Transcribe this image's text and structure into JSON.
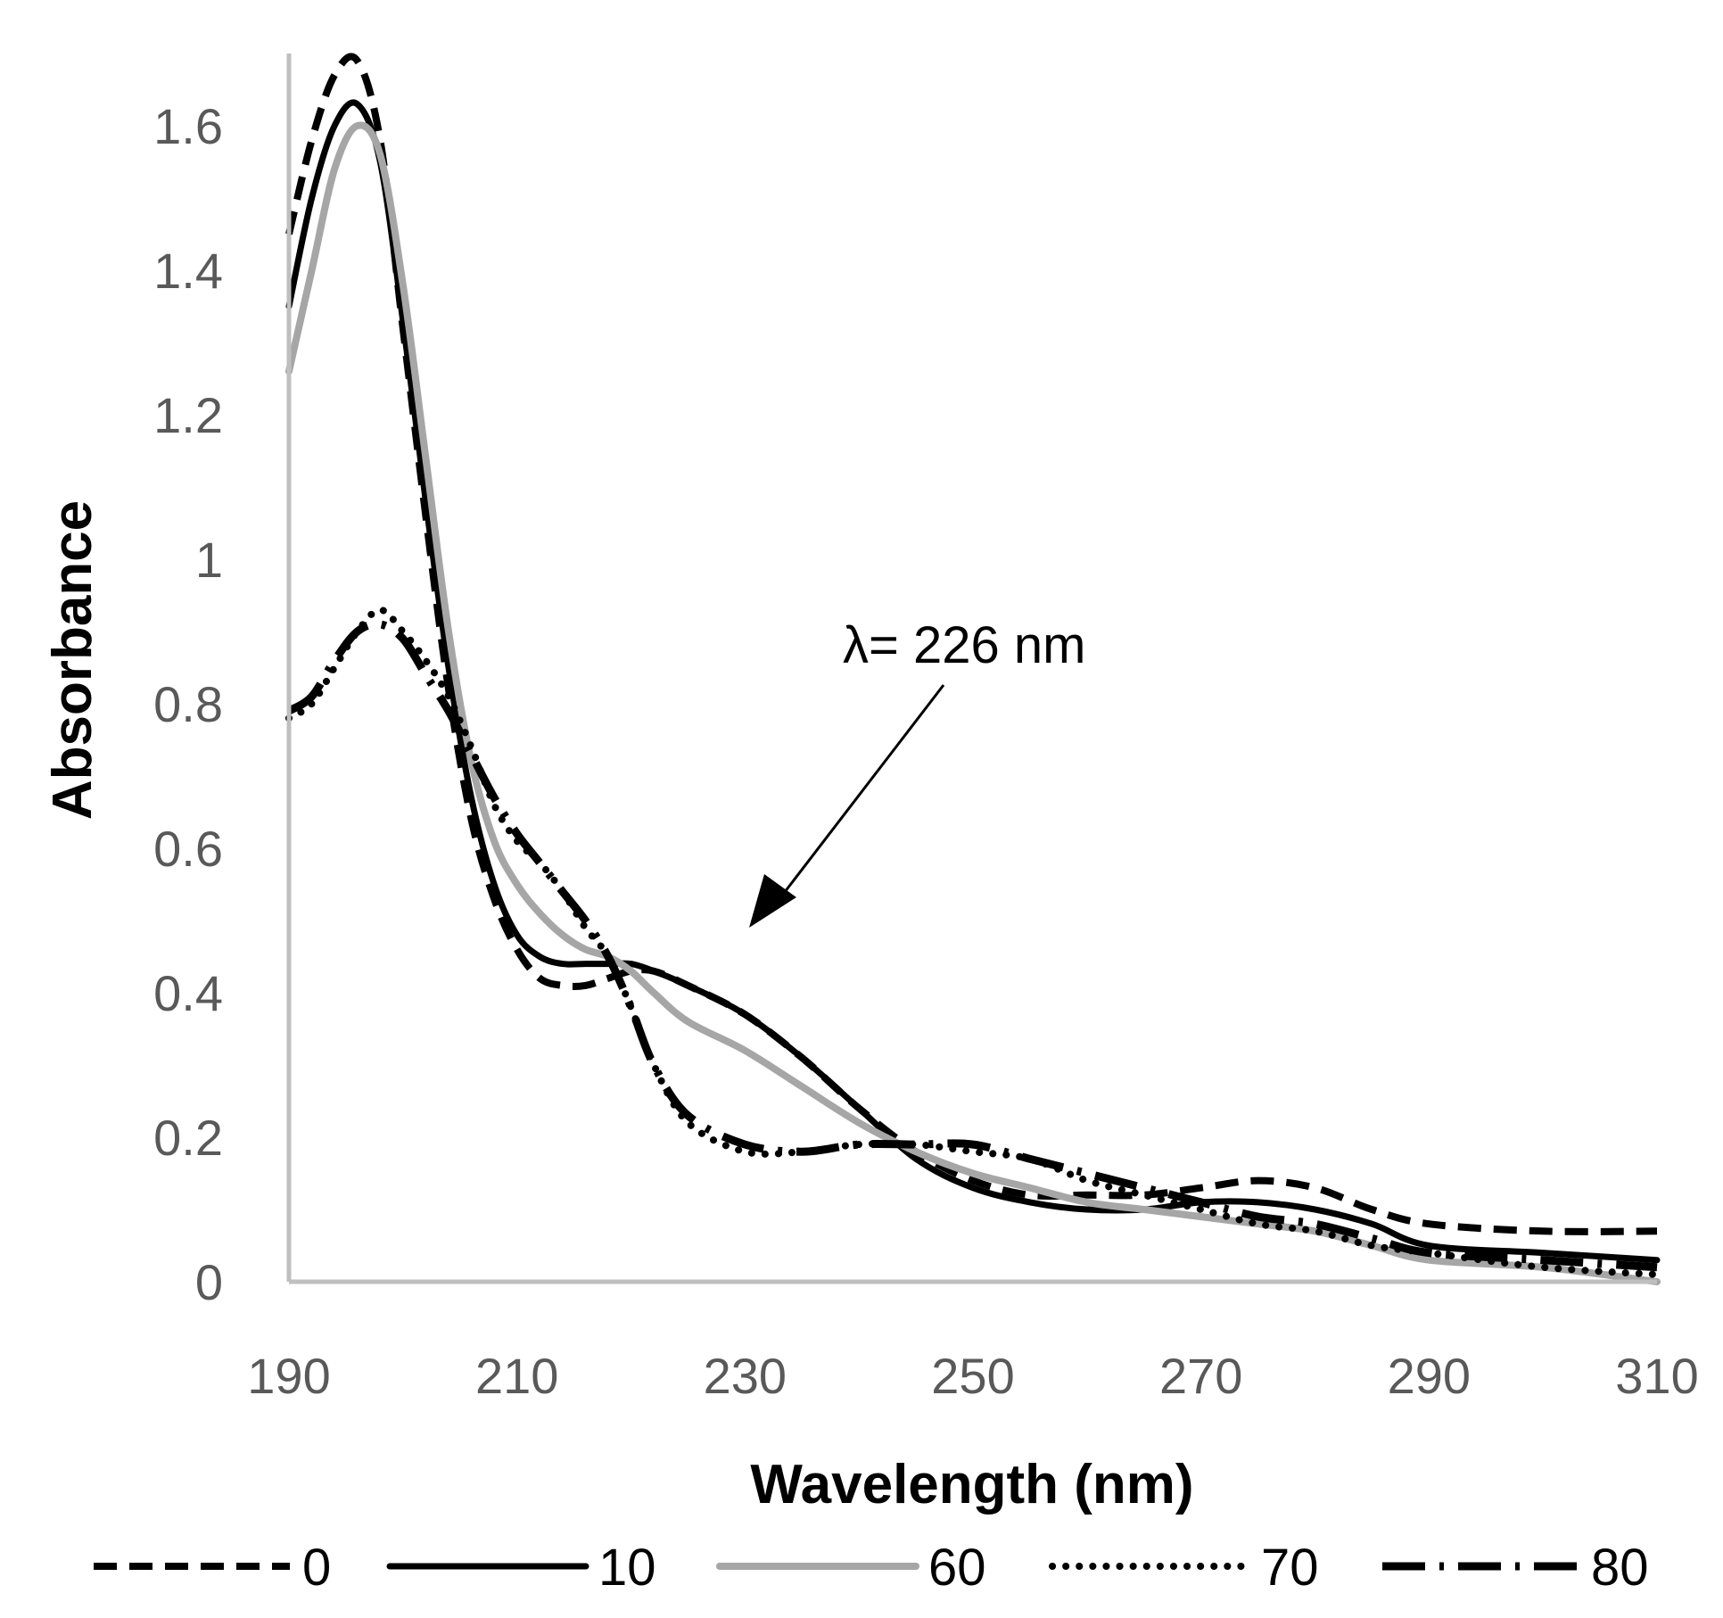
{
  "chart_data": {
    "type": "line",
    "title": "",
    "xlabel": "Wavelength (nm)",
    "ylabel": "Absorbance",
    "xlim": [
      190,
      310
    ],
    "ylim": [
      0,
      1.7
    ],
    "xticks": [
      190,
      210,
      230,
      250,
      270,
      290,
      310
    ],
    "xtick_labels": [
      "190",
      "210",
      "230",
      "250",
      "270",
      "290",
      "310"
    ],
    "yticks": [
      0,
      0.2,
      0.4,
      0.6,
      0.8,
      1.0,
      1.2,
      1.4,
      1.6
    ],
    "ytick_labels": [
      "0",
      "0.2",
      "0.4",
      "0.6",
      "0.8",
      "1",
      "1.2",
      "1.4",
      "1.6"
    ],
    "grid": false,
    "legend_position": "bottom",
    "annotation": {
      "text": "λ= 226  nm",
      "points_to": [
        231,
        0.49
      ]
    },
    "series": [
      {
        "name": "0",
        "color": "#000000",
        "dash": "dashed",
        "x": [
          190,
          192,
          194,
          196,
          198,
          200,
          202,
          204,
          206,
          208,
          210,
          212,
          214,
          216,
          218,
          220,
          222,
          225,
          230,
          235,
          240,
          245,
          250,
          255,
          260,
          265,
          270,
          275,
          280,
          285,
          290,
          300,
          310
        ],
        "y": [
          1.45,
          1.58,
          1.67,
          1.69,
          1.58,
          1.32,
          1.06,
          0.82,
          0.64,
          0.53,
          0.46,
          0.42,
          0.41,
          0.41,
          0.42,
          0.43,
          0.43,
          0.41,
          0.37,
          0.31,
          0.24,
          0.18,
          0.14,
          0.12,
          0.12,
          0.12,
          0.13,
          0.14,
          0.13,
          0.1,
          0.08,
          0.07,
          0.07
        ]
      },
      {
        "name": "10",
        "color": "#000000",
        "dash": "solid",
        "x": [
          190,
          192,
          194,
          196,
          198,
          200,
          202,
          204,
          206,
          208,
          210,
          212,
          214,
          216,
          218,
          220,
          222,
          225,
          230,
          235,
          240,
          245,
          250,
          255,
          260,
          265,
          270,
          275,
          280,
          285,
          290,
          300,
          310
        ],
        "y": [
          1.35,
          1.5,
          1.6,
          1.63,
          1.55,
          1.33,
          1.08,
          0.85,
          0.67,
          0.55,
          0.48,
          0.45,
          0.44,
          0.44,
          0.44,
          0.44,
          0.43,
          0.41,
          0.37,
          0.31,
          0.24,
          0.17,
          0.13,
          0.11,
          0.1,
          0.1,
          0.11,
          0.11,
          0.1,
          0.08,
          0.05,
          0.04,
          0.03
        ]
      },
      {
        "name": "60",
        "color": "#a6a6a6",
        "dash": "solid",
        "x": [
          190,
          192,
          194,
          196,
          198,
          200,
          202,
          204,
          206,
          208,
          210,
          212,
          214,
          216,
          218,
          220,
          222,
          225,
          230,
          235,
          240,
          245,
          250,
          255,
          260,
          265,
          270,
          275,
          280,
          285,
          290,
          300,
          310
        ],
        "y": [
          1.26,
          1.4,
          1.54,
          1.6,
          1.56,
          1.38,
          1.14,
          0.9,
          0.72,
          0.61,
          0.55,
          0.51,
          0.48,
          0.46,
          0.45,
          0.43,
          0.4,
          0.36,
          0.32,
          0.27,
          0.22,
          0.18,
          0.15,
          0.13,
          0.11,
          0.1,
          0.09,
          0.08,
          0.07,
          0.05,
          0.03,
          0.02,
          0.0
        ]
      },
      {
        "name": "70",
        "color": "#000000",
        "dash": "dotted",
        "x": [
          190,
          192,
          194,
          196,
          198,
          200,
          202,
          204,
          206,
          208,
          210,
          212,
          214,
          216,
          218,
          220,
          222,
          225,
          230,
          235,
          240,
          245,
          250,
          255,
          260,
          265,
          270,
          275,
          280,
          285,
          290,
          300,
          310
        ],
        "y": [
          0.78,
          0.8,
          0.85,
          0.9,
          0.93,
          0.9,
          0.86,
          0.81,
          0.74,
          0.66,
          0.61,
          0.58,
          0.54,
          0.49,
          0.45,
          0.38,
          0.3,
          0.22,
          0.18,
          0.18,
          0.19,
          0.19,
          0.18,
          0.17,
          0.14,
          0.12,
          0.1,
          0.08,
          0.07,
          0.05,
          0.04,
          0.02,
          0.01
        ]
      },
      {
        "name": "80",
        "color": "#000000",
        "dash": "long-dash-dot",
        "x": [
          190,
          192,
          194,
          196,
          198,
          200,
          202,
          204,
          206,
          208,
          210,
          212,
          214,
          216,
          218,
          220,
          222,
          225,
          230,
          235,
          240,
          245,
          250,
          255,
          260,
          265,
          270,
          275,
          280,
          285,
          290,
          300,
          310
        ],
        "y": [
          0.79,
          0.81,
          0.86,
          0.9,
          0.91,
          0.89,
          0.84,
          0.79,
          0.73,
          0.67,
          0.62,
          0.58,
          0.54,
          0.5,
          0.45,
          0.38,
          0.3,
          0.23,
          0.19,
          0.18,
          0.19,
          0.19,
          0.19,
          0.17,
          0.15,
          0.13,
          0.11,
          0.09,
          0.08,
          0.06,
          0.04,
          0.03,
          0.02
        ]
      }
    ]
  }
}
